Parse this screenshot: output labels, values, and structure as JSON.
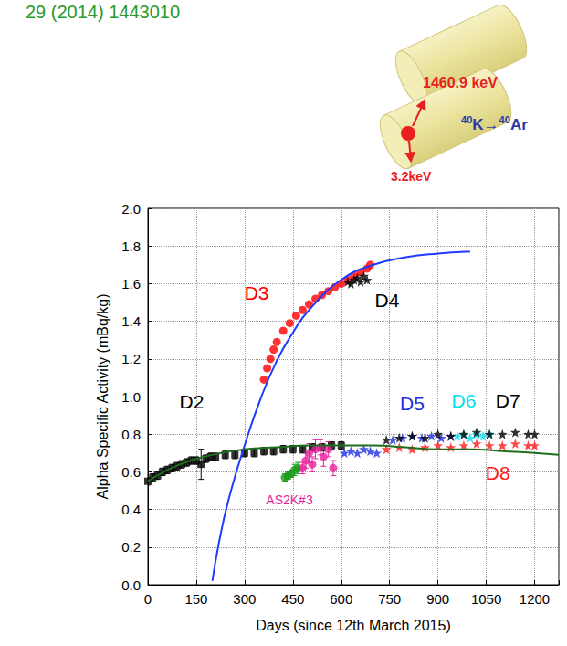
{
  "chart_data": {
    "type": "scatter",
    "x_label": "Days (since 12th March 2015)",
    "y_label": "Alpha Specific Activity (mBq/kg)",
    "xlim": [
      0,
      1275
    ],
    "xticks": [
      0,
      150,
      300,
      450,
      600,
      750,
      900,
      1050,
      1200
    ],
    "ylim": [
      0,
      2.0
    ],
    "yticks": [
      {
        "value": 0,
        "label": "0.0"
      },
      0.2,
      0.4,
      0.6,
      0.8,
      {
        "value": 1,
        "label": "1.0"
      },
      1.2,
      1.4,
      1.6,
      1.8,
      {
        "value": 2,
        "label": "2.0"
      }
    ],
    "grid": true,
    "annotations": [
      {
        "text": "29 (2014) 1443010",
        "color": "#2a9a2a"
      },
      {
        "text": "1460.9 keV",
        "color": "#e8201e"
      },
      {
        "text": "40K→40Ar",
        "color": "#2b3aa8"
      },
      {
        "text": "3.2keV",
        "color": "#e8201e"
      }
    ],
    "series": [
      {
        "name": "D2",
        "type": "scatter",
        "marker": "square",
        "color": "#000000",
        "x": [
          0,
          15,
          30,
          45,
          60,
          75,
          90,
          105,
          120,
          135,
          150,
          165,
          180,
          195,
          210,
          240,
          270,
          300,
          330,
          360,
          390,
          420,
          450,
          480,
          510,
          540,
          570,
          600
        ],
        "values": [
          0.55,
          0.57,
          0.58,
          0.6,
          0.61,
          0.62,
          0.63,
          0.64,
          0.65,
          0.66,
          0.66,
          0.64,
          0.67,
          0.68,
          0.68,
          0.69,
          0.69,
          0.7,
          0.7,
          0.71,
          0.71,
          0.72,
          0.72,
          0.72,
          0.73,
          0.73,
          0.74,
          0.74
        ],
        "errors": [
          0.02,
          0.02,
          0.02,
          0.02,
          0.02,
          0.02,
          0.02,
          0.02,
          0.02,
          0.02,
          0.02,
          0.08,
          0.02,
          0.02,
          0.02,
          0.02,
          0.02,
          0.02,
          0.02,
          0.02,
          0.02,
          0.02,
          0.02,
          0.02,
          0.02,
          0.02,
          0.02,
          0.02
        ]
      },
      {
        "name": "AS2K#3",
        "type": "scatter",
        "marker": "circle",
        "colors": [
          "#1a9a1a",
          "#1a9a1a",
          "#1a9a1a",
          "#1a9a1a",
          "#1a9a1a",
          "#e6239b",
          "#e6239b",
          "#e6239b",
          "#e6239b",
          "#e6239b",
          "#e6239b",
          "#e6239b",
          "#e6239b",
          "#e6239b"
        ],
        "x": [
          425,
          435,
          445,
          455,
          465,
          480,
          490,
          500,
          510,
          520,
          535,
          545,
          560,
          575
        ],
        "values": [
          0.57,
          0.58,
          0.59,
          0.61,
          0.62,
          0.62,
          0.66,
          0.7,
          0.64,
          0.72,
          0.73,
          0.68,
          0.72,
          0.62
        ],
        "errors": [
          0.02,
          0.02,
          0.02,
          0.03,
          0.03,
          0.03,
          0.04,
          0.05,
          0.04,
          0.05,
          0.04,
          0.05,
          0.04,
          0.04
        ]
      },
      {
        "name": "D5",
        "type": "scatter",
        "marker": "star",
        "color": "#1f2fe0",
        "x": [
          610,
          630,
          650,
          670,
          690,
          710,
          760,
          790,
          820,
          850,
          880,
          910,
          940
        ],
        "values": [
          0.7,
          0.71,
          0.7,
          0.72,
          0.71,
          0.7,
          0.77,
          0.78,
          0.79,
          0.78,
          0.79,
          0.78,
          0.79
        ]
      },
      {
        "name": "D6",
        "type": "scatter",
        "marker": "star",
        "color": "#00e0f0",
        "x": [
          960,
          980,
          1000,
          1020,
          1040,
          1060
        ],
        "values": [
          0.79,
          0.8,
          0.78,
          0.8,
          0.79,
          0.8
        ]
      },
      {
        "name": "D7",
        "type": "scatter",
        "marker": "star",
        "color": "#000000",
        "x": [
          740,
          780,
          820,
          860,
          900,
          940,
          980,
          1020,
          1060,
          1100,
          1140,
          1180,
          1200
        ],
        "values": [
          0.77,
          0.78,
          0.79,
          0.78,
          0.8,
          0.79,
          0.8,
          0.81,
          0.8,
          0.8,
          0.81,
          0.8,
          0.8
        ]
      },
      {
        "name": "D8",
        "type": "scatter",
        "marker": "star",
        "color": "#ff1a1a",
        "x": [
          740,
          780,
          820,
          860,
          900,
          940,
          980,
          1020,
          1060,
          1100,
          1140,
          1180,
          1200
        ],
        "values": [
          0.72,
          0.73,
          0.72,
          0.73,
          0.74,
          0.73,
          0.74,
          0.75,
          0.74,
          0.74,
          0.75,
          0.74,
          0.74
        ]
      },
      {
        "name": "D3",
        "type": "scatter",
        "marker": "circle",
        "color": "#ff0000",
        "x": [
          360,
          370,
          380,
          390,
          400,
          420,
          440,
          460,
          480,
          500,
          520,
          540,
          560,
          580,
          600,
          620,
          640,
          660,
          680,
          690
        ],
        "values": [
          1.09,
          1.15,
          1.2,
          1.25,
          1.29,
          1.35,
          1.39,
          1.43,
          1.46,
          1.49,
          1.52,
          1.54,
          1.56,
          1.58,
          1.6,
          1.62,
          1.64,
          1.66,
          1.68,
          1.7
        ]
      },
      {
        "name": "D4",
        "type": "scatter",
        "marker": "star",
        "color": "#000000",
        "x": [
          620,
          630,
          640,
          650,
          660,
          670,
          680
        ],
        "values": [
          1.61,
          1.6,
          1.62,
          1.63,
          1.61,
          1.64,
          1.62
        ]
      },
      {
        "type": "line",
        "line_style": "solid",
        "color": "#1e3cff",
        "x": [
          200,
          220,
          250,
          300,
          350,
          400,
          450,
          500,
          600,
          700,
          800,
          900,
          1000
        ],
        "values": [
          0.02,
          0.22,
          0.45,
          0.74,
          0.99,
          1.19,
          1.34,
          1.46,
          1.62,
          1.7,
          1.74,
          1.76,
          1.77
        ]
      },
      {
        "type": "line",
        "line_style": "solid",
        "color": "#1e6e1e",
        "x": [
          0,
          100,
          200,
          300,
          400,
          500,
          600,
          700,
          800,
          900,
          1000,
          1100,
          1200,
          1275
        ],
        "values": [
          0.55,
          0.64,
          0.69,
          0.72,
          0.73,
          0.74,
          0.74,
          0.74,
          0.73,
          0.72,
          0.72,
          0.71,
          0.7,
          0.69
        ]
      }
    ]
  }
}
